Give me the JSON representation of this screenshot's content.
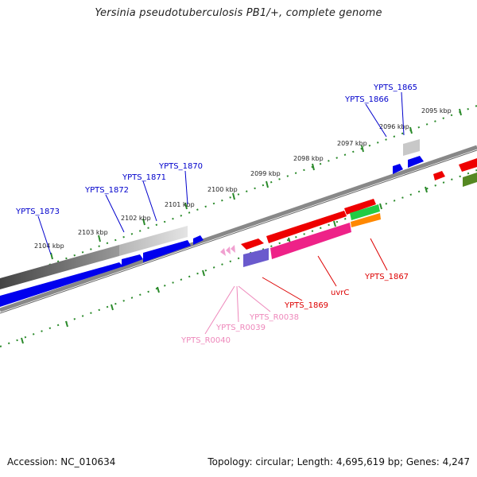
{
  "title": "Yersinia pseudotuberculosis PB1/+, complete genome",
  "footer": {
    "accession": "Accession: NC_010634",
    "summary": "Topology: circular; Length: 4,695,619 bp; Genes: 4,247"
  },
  "colors": {
    "forward_cds": "#0000ee",
    "reverse_cds": "#ee0000",
    "pseudo_gray": "#b0b0b0",
    "ncrna_pink": "#f0a0d0",
    "tick_green": "#228822",
    "label_blue": "#0000cc",
    "label_red": "#dd0000",
    "label_pink": "#ee88bb"
  },
  "ticks": {
    "outer": [
      {
        "label": "2095 kbp"
      },
      {
        "label": "2096 kbp"
      },
      {
        "label": "2097 kbp"
      },
      {
        "label": "2098 kbp"
      },
      {
        "label": "2099 kbp"
      },
      {
        "label": "2100 kbp"
      },
      {
        "label": "2101 kbp"
      },
      {
        "label": "2102 kbp"
      },
      {
        "label": "2103 kbp"
      },
      {
        "label": "2104 kbp"
      }
    ]
  },
  "gene_labels": {
    "forward": [
      "YPTS_1865",
      "YPTS_1866",
      "YPTS_1870",
      "YPTS_1871",
      "YPTS_1872",
      "YPTS_1873"
    ],
    "reverse": [
      "YPTS_1867",
      "uvrC",
      "YPTS_1869"
    ],
    "ncrna": [
      "YPTS_R0038",
      "YPTS_R0039",
      "YPTS_R0040"
    ]
  }
}
